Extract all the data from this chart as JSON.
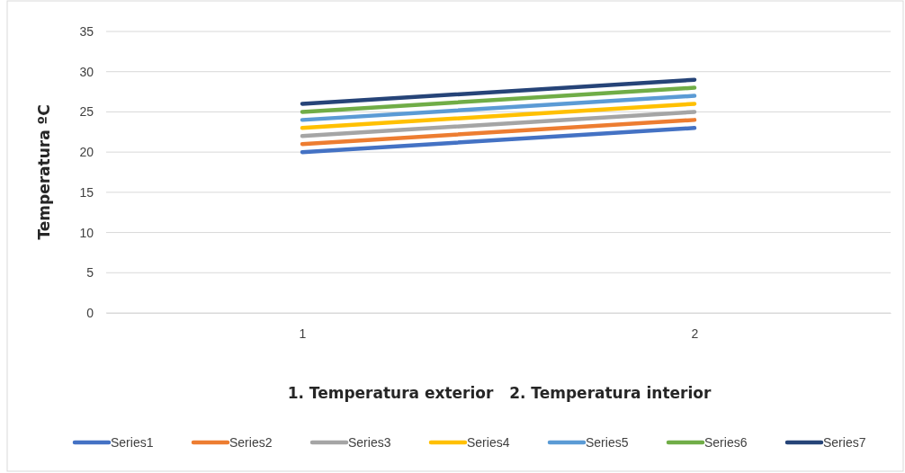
{
  "chart_data": {
    "type": "line",
    "xlabel": "1. Temperatura exterior   2. Temperatura interior",
    "ylabel": "Temperatura ºC",
    "categories": [
      "1",
      "2"
    ],
    "ylim": [
      0,
      35
    ],
    "yticks": [
      0,
      5,
      10,
      15,
      20,
      25,
      30,
      35
    ],
    "grid": "y",
    "legend": "bottom",
    "marker": "none",
    "line_style": "solid",
    "series": [
      {
        "name": "Series1",
        "color": "#4472c4",
        "values": [
          20,
          23
        ]
      },
      {
        "name": "Series2",
        "color": "#ed7d31",
        "values": [
          21,
          24
        ]
      },
      {
        "name": "Series3",
        "color": "#a5a5a5",
        "values": [
          22,
          25
        ]
      },
      {
        "name": "Series4",
        "color": "#ffc000",
        "values": [
          23,
          26
        ]
      },
      {
        "name": "Series5",
        "color": "#5b9bd5",
        "values": [
          24,
          27
        ]
      },
      {
        "name": "Series6",
        "color": "#70ad47",
        "values": [
          25,
          28
        ]
      },
      {
        "name": "Series7",
        "color": "#264478",
        "values": [
          26,
          29
        ]
      }
    ]
  }
}
